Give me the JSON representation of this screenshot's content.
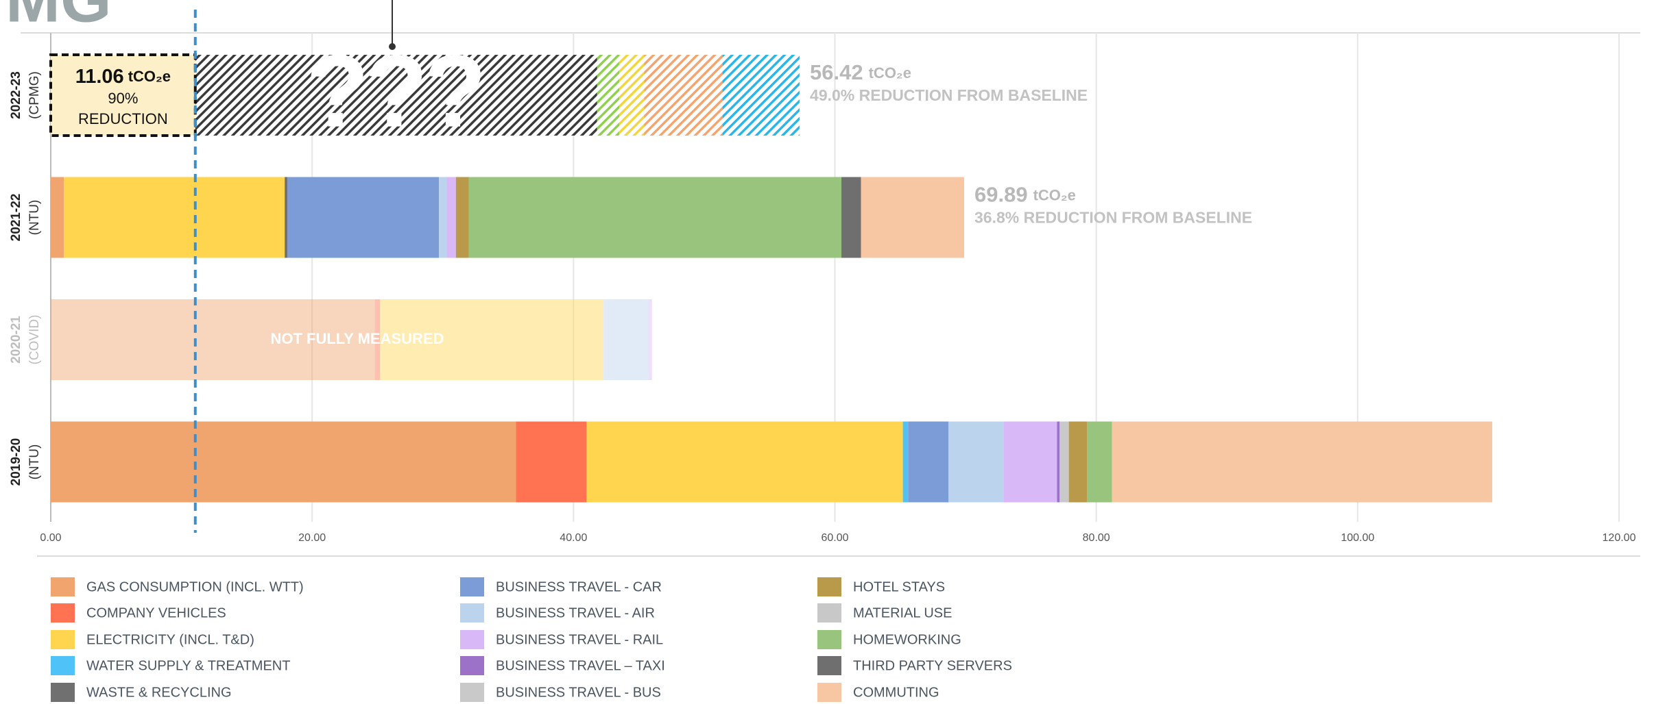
{
  "logo_fragment": "MG",
  "chart_data": {
    "type": "stacked_barh",
    "categories": [
      "2022-23",
      "2021-22",
      "2020-21",
      "2019-20"
    ],
    "category_notes": [
      "(CPMG)",
      "(NTU)",
      "(COVID)",
      "(NTU)"
    ],
    "faded": [
      false,
      false,
      true,
      false
    ],
    "faded_note": "NOT FULLY MEASURED",
    "hatched": [
      true,
      false,
      false,
      false
    ],
    "hatched_overlay": "???",
    "projection": [
      {
        "color": "#3a3a3a",
        "value": 41.8
      },
      {
        "color": "#8fd14f",
        "value": 1.7
      },
      {
        "color": "#f2d640",
        "value": 1.9
      },
      {
        "color": "#f4a46e",
        "value": 6.0
      },
      {
        "color": "#29b6e8",
        "value": 5.9
      }
    ],
    "unit": "tCO₂e",
    "totals": [
      56.42,
      69.89,
      null,
      null
    ],
    "total_notes": [
      "49.0% REDUCTION FROM BASELINE",
      "36.8% REDUCTION FROM BASELINE",
      null,
      null
    ],
    "target": {
      "value": 11.06,
      "reduction": 90,
      "reduction_label": "90%",
      "note": "REDUCTION",
      "line_color": "#3a8fd0",
      "box_color": "#fdf0c8"
    },
    "series": [
      {
        "name": "GAS CONSUMPTION (INCL. WTT)",
        "color": "#f0a56e",
        "values": [
          null,
          1.0,
          24.8,
          35.6
        ]
      },
      {
        "name": "COMPANY VEHICLES",
        "color": "#ff7352",
        "values": [
          null,
          null,
          0.4,
          5.4
        ]
      },
      {
        "name": "ELECTRICITY (INCL. T&D)",
        "color": "#ffd54f",
        "values": [
          null,
          16.9,
          17.1,
          24.2
        ]
      },
      {
        "name": "WATER SUPPLY & TREATMENT",
        "color": "#4fc3f7",
        "values": [
          null,
          null,
          null,
          0.4
        ]
      },
      {
        "name": "WASTE & RECYCLING",
        "color": "#707070",
        "values": [
          null,
          0.2,
          null,
          null
        ]
      },
      {
        "name": "BUSINESS TRAVEL - CAR",
        "color": "#7b9cd6",
        "values": [
          null,
          11.6,
          null,
          3.1
        ]
      },
      {
        "name": "BUSINESS TRAVEL - AIR",
        "color": "#bcd3ee",
        "values": [
          null,
          0.6,
          3.4,
          4.2
        ]
      },
      {
        "name": "BUSINESS TRAVEL - RAIL",
        "color": "#d9b8f7",
        "values": [
          null,
          0.7,
          0.3,
          4.1
        ]
      },
      {
        "name": "BUSINESS TRAVEL – TAXI",
        "color": "#9b72c7",
        "values": [
          null,
          null,
          null,
          0.2
        ]
      },
      {
        "name": "BUSINESS TRAVEL - BUS",
        "color": "#c9c9c9",
        "values": [
          null,
          null,
          null,
          0.7
        ]
      },
      {
        "name": "HOTEL STAYS",
        "color": "#b89a4a",
        "values": [
          null,
          1.0,
          null,
          1.4
        ]
      },
      {
        "name": "MATERIAL USE",
        "color": "#c8c8c8",
        "values": [
          null,
          null,
          null,
          null
        ]
      },
      {
        "name": "HOMEWORKING",
        "color": "#98c47e",
        "values": [
          null,
          28.5,
          null,
          1.9
        ]
      },
      {
        "name": "THIRD PARTY SERVERS",
        "color": "#6f6f6f",
        "values": [
          null,
          1.5,
          null,
          null
        ]
      },
      {
        "name": "COMMUTING",
        "color": "#f7c6a3",
        "values": [
          null,
          7.89,
          null,
          29.1
        ]
      }
    ],
    "xlim": [
      0,
      120
    ],
    "xticks": [
      {
        "value": 0,
        "label": "0.00"
      },
      {
        "value": 20,
        "label": "20.00"
      },
      {
        "value": 40,
        "label": "40.00"
      },
      {
        "value": 60,
        "label": "60.00"
      },
      {
        "value": 80,
        "label": "80.00"
      },
      {
        "value": 100,
        "label": "100.00"
      },
      {
        "value": 120,
        "label": "120.00"
      }
    ],
    "grid": true
  }
}
